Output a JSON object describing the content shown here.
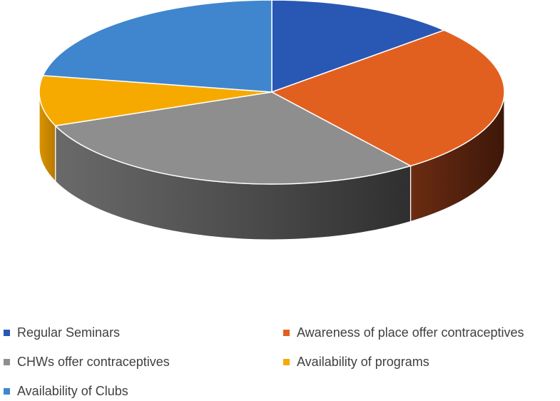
{
  "chart_data": {
    "type": "pie",
    "title": "",
    "categories": [
      "Regular Seminars",
      "Awareness of place offer contraceptives",
      "CHWs offer contraceptives",
      "Availability of programs",
      "Availability of Clubs"
    ],
    "values": [
      15,
      30,
      33,
      10,
      25
    ],
    "colors": [
      "#2957b4",
      "#e2601f",
      "#8e8e8e",
      "#f6aa00",
      "#3f86ce"
    ],
    "side_colors": [
      "#1e3e80",
      "#5a2410",
      "#4a4a4a",
      "#c98600",
      "#2b5e94"
    ],
    "legend_position": "bottom"
  }
}
